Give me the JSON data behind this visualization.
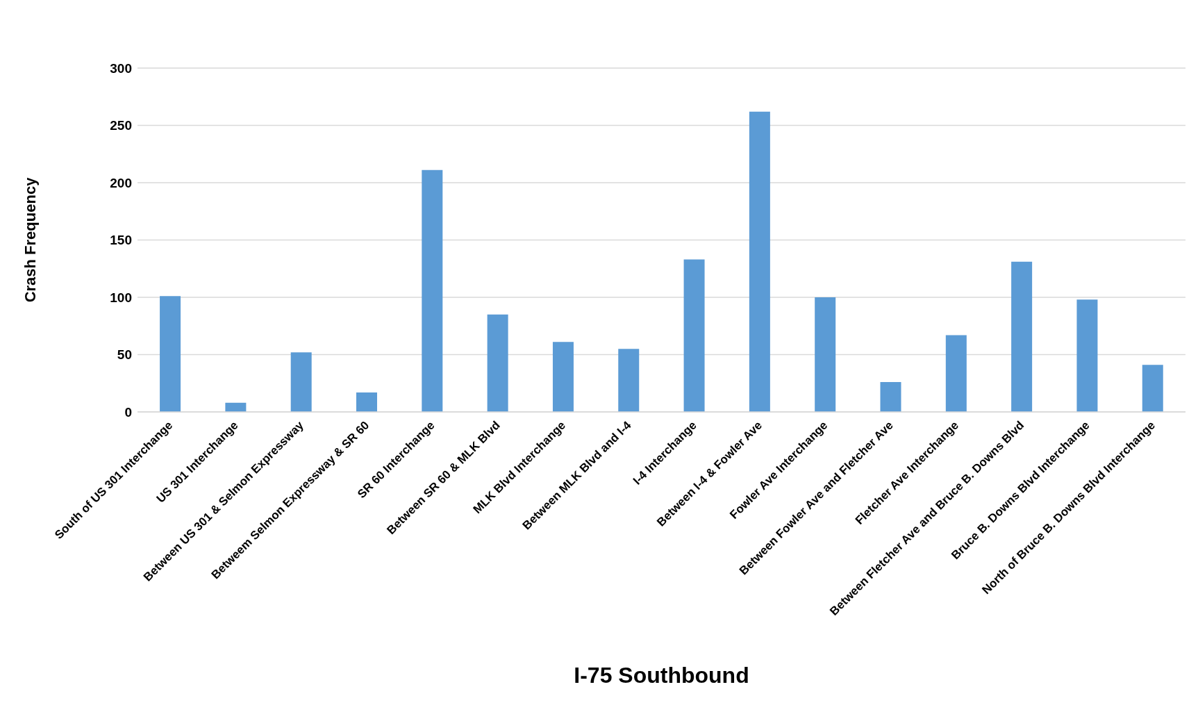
{
  "chart_data": {
    "type": "bar",
    "xlabel": "I-75 Southbound",
    "ylabel": "Crash Frequency",
    "categories": [
      "South of US 301 Interchange",
      "US 301 Interchange",
      "Between US 301 & Selmon Expressway",
      "Betweem Selmon Expressway & SR 60",
      "SR 60 Interchange",
      "Between SR 60 & MLK Blvd",
      "MLK Blvd Interchange",
      "Between MLK Blvd and I-4",
      "I-4 Interchange",
      "Between I-4 & Fowler Ave",
      "Fowler Ave Interchange",
      "Between Fowler Ave and Fletcher Ave",
      "Fletcher Ave Interchange",
      "Between Fletcher Ave and Bruce B. Downs Blvd",
      "Bruce B. Downs Blvd Interchange",
      "North of Bruce B. Downs Blvd Interchange"
    ],
    "values": [
      101,
      8,
      52,
      17,
      211,
      85,
      61,
      55,
      133,
      262,
      100,
      26,
      67,
      131,
      98,
      41
    ],
    "color": "#5b9bd5",
    "ylim": [
      0,
      300
    ],
    "yticks": [
      0,
      50,
      100,
      150,
      200,
      250,
      300
    ],
    "grid": "y",
    "legend": false
  }
}
